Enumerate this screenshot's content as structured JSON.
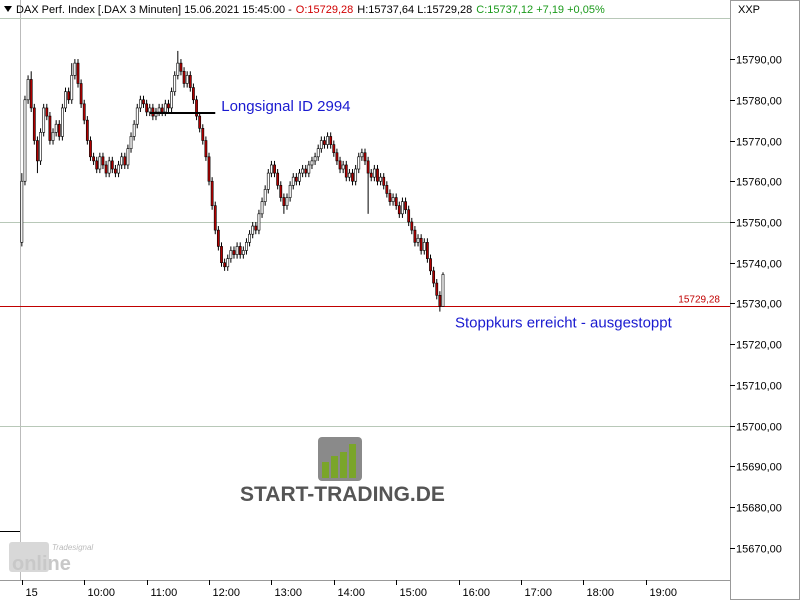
{
  "chart_data": {
    "type": "candlestick",
    "header": [
      {
        "text": "DAX Perf. Index [.DAX  3 Minuten] 15.06.2021 15:45:00 -",
        "color": "#000000"
      },
      {
        "text": "O:15729,28",
        "color": "#d00000"
      },
      {
        "text": "H:15737,64 L:15729,28",
        "color": "#000000"
      },
      {
        "text": "C:15737,12 +7,19 +0,05%",
        "color": "#1a9a1a"
      }
    ],
    "axis_name": "XXP",
    "up_color": "#ffffff",
    "down_color": "#b00000",
    "xlim": [
      519,
      1221
    ],
    "ylim": [
      15662.1,
      15804.5
    ],
    "xticks": [
      {
        "value": 540,
        "label": "15"
      },
      {
        "value": 600,
        "label": "10:00"
      },
      {
        "value": 660,
        "label": "11:00"
      },
      {
        "value": 720,
        "label": "12:00"
      },
      {
        "value": 780,
        "label": "13:00"
      },
      {
        "value": 840,
        "label": "14:00"
      },
      {
        "value": 900,
        "label": "15:00"
      },
      {
        "value": 960,
        "label": "16:00"
      },
      {
        "value": 1020,
        "label": "17:00"
      },
      {
        "value": 1080,
        "label": "18:00"
      },
      {
        "value": 1140,
        "label": "19:00"
      }
    ],
    "yticks": [
      {
        "value": 15670,
        "label": "15670,00"
      },
      {
        "value": 15680,
        "label": "15680,00"
      },
      {
        "value": 15690,
        "label": "15690,00"
      },
      {
        "value": 15700,
        "label": "15700,00"
      },
      {
        "value": 15710,
        "label": "15710,00"
      },
      {
        "value": 15720,
        "label": "15720,00"
      },
      {
        "value": 15730,
        "label": "15730,00"
      },
      {
        "value": 15740,
        "label": "15740,00"
      },
      {
        "value": 15750,
        "label": "15750,00"
      },
      {
        "value": 15760,
        "label": "15760,00"
      },
      {
        "value": 15770,
        "label": "15770,00"
      },
      {
        "value": 15780,
        "label": "15780,00"
      },
      {
        "value": 15790,
        "label": "15790,00"
      }
    ],
    "grid_levels": [
      15700,
      15750,
      15800
    ],
    "price_line": {
      "value": 15729.28,
      "label": "15729,28",
      "color": "#c00000"
    },
    "signal": {
      "text": "Longsignal ID 2994",
      "value": 15776.75,
      "x": [
        663,
        726
      ]
    },
    "stop_text": "Stoppkurs erreicht - ausgestoppt",
    "watermark": "START-TRADING.DE",
    "brand": [
      "Tradesignal",
      "online"
    ],
    "x": [
      540,
      543,
      546,
      549,
      552,
      555,
      558,
      561,
      564,
      567,
      570,
      573,
      576,
      579,
      582,
      585,
      588,
      591,
      594,
      597,
      600,
      603,
      606,
      609,
      612,
      615,
      618,
      621,
      624,
      627,
      630,
      633,
      636,
      639,
      642,
      645,
      648,
      651,
      654,
      657,
      660,
      663,
      666,
      669,
      672,
      675,
      678,
      681,
      684,
      687,
      690,
      693,
      696,
      699,
      702,
      705,
      708,
      711,
      714,
      717,
      720,
      723,
      726,
      729,
      732,
      735,
      738,
      741,
      744,
      747,
      750,
      753,
      756,
      759,
      762,
      765,
      768,
      771,
      774,
      777,
      780,
      783,
      786,
      789,
      792,
      795,
      798,
      801,
      804,
      807,
      810,
      813,
      816,
      819,
      822,
      825,
      828,
      831,
      834,
      837,
      840,
      843,
      846,
      849,
      852,
      855,
      858,
      861,
      864,
      867,
      870,
      873,
      876,
      879,
      882,
      885,
      888,
      891,
      894,
      897,
      900,
      903,
      906,
      909,
      912,
      915,
      918,
      921,
      924,
      927,
      930,
      933,
      936,
      939,
      942,
      945
    ],
    "ohlc": [
      [
        15745,
        15762,
        15744,
        15760
      ],
      [
        15760,
        15781,
        15759,
        15780
      ],
      [
        15780,
        15786,
        15779,
        15785
      ],
      [
        15785,
        15787,
        15777,
        15778
      ],
      [
        15778,
        15779,
        15769,
        15770
      ],
      [
        15770,
        15771,
        15762,
        15765
      ],
      [
        15765,
        15773,
        15764,
        15772
      ],
      [
        15772,
        15779,
        15771,
        15778
      ],
      [
        15778,
        15779,
        15775,
        15776
      ],
      [
        15776,
        15777,
        15769,
        15770
      ],
      [
        15770,
        15773,
        15769,
        15772
      ],
      [
        15772,
        15775,
        15771,
        15774
      ],
      [
        15774,
        15775,
        15770,
        15771
      ],
      [
        15771,
        15779,
        15770,
        15778
      ],
      [
        15778,
        15783,
        15777,
        15782
      ],
      [
        15782,
        15783,
        15779,
        15780
      ],
      [
        15780,
        15789,
        15779,
        15786
      ],
      [
        15786,
        15790,
        15785,
        15789
      ],
      [
        15789,
        15790,
        15783,
        15784
      ],
      [
        15784,
        15785,
        15778,
        15779
      ],
      [
        15779,
        15780,
        15774,
        15775
      ],
      [
        15775,
        15776,
        15769,
        15770
      ],
      [
        15770,
        15771,
        15765,
        15766
      ],
      [
        15766,
        15767,
        15764,
        15765
      ],
      [
        15765,
        15766,
        15762,
        15763
      ],
      [
        15763,
        15767,
        15762,
        15766
      ],
      [
        15766,
        15767,
        15763,
        15764
      ],
      [
        15764,
        15765,
        15761,
        15762
      ],
      [
        15762,
        15766,
        15761,
        15765
      ],
      [
        15765,
        15766,
        15762,
        15763
      ],
      [
        15763,
        15764,
        15761,
        15762
      ],
      [
        15762,
        15765,
        15761,
        15764
      ],
      [
        15764,
        15767,
        15763,
        15766
      ],
      [
        15766,
        15767,
        15763,
        15764
      ],
      [
        15764,
        15769,
        15763,
        15768
      ],
      [
        15768,
        15772,
        15767,
        15771
      ],
      [
        15771,
        15775,
        15770,
        15774
      ],
      [
        15774,
        15779,
        15773,
        15778
      ],
      [
        15778,
        15781,
        15777,
        15780
      ],
      [
        15780,
        15781,
        15778,
        15779
      ],
      [
        15779,
        15780,
        15776,
        15777
      ],
      [
        15777,
        15779,
        15776,
        15778
      ],
      [
        15778,
        15779,
        15775,
        15776
      ],
      [
        15776,
        15778,
        15775,
        15777
      ],
      [
        15777,
        15779,
        15776,
        15778
      ],
      [
        15778,
        15779,
        15776,
        15777
      ],
      [
        15777,
        15780,
        15776,
        15779
      ],
      [
        15779,
        15780,
        15777,
        15778
      ],
      [
        15778,
        15783,
        15777,
        15782
      ],
      [
        15782,
        15787,
        15781,
        15786
      ],
      [
        15786,
        15792,
        15785,
        15789
      ],
      [
        15789,
        15790,
        15786,
        15787
      ],
      [
        15787,
        15788,
        15783,
        15784
      ],
      [
        15784,
        15787,
        15783,
        15786
      ],
      [
        15786,
        15787,
        15782,
        15783
      ],
      [
        15783,
        15784,
        15779,
        15780
      ],
      [
        15780,
        15781,
        15775,
        15776
      ],
      [
        15776,
        15777,
        15772,
        15773
      ],
      [
        15773,
        15774,
        15769,
        15770
      ],
      [
        15770,
        15771,
        15765,
        15766
      ],
      [
        15766,
        15767,
        15759,
        15760
      ],
      [
        15760,
        15761,
        15753,
        15754
      ],
      [
        15754,
        15755,
        15747,
        15748
      ],
      [
        15748,
        15749,
        15743,
        15744
      ],
      [
        15744,
        15745,
        15739,
        15740
      ],
      [
        15740,
        15741,
        15738,
        15739
      ],
      [
        15739,
        15742,
        15738,
        15741
      ],
      [
        15741,
        15744,
        15740,
        15743
      ],
      [
        15743,
        15744,
        15741,
        15742
      ],
      [
        15742,
        15745,
        15741,
        15744
      ],
      [
        15744,
        15745,
        15741,
        15742
      ],
      [
        15742,
        15744,
        15741,
        15743
      ],
      [
        15743,
        15746,
        15742,
        15745
      ],
      [
        15745,
        15748,
        15744,
        15747
      ],
      [
        15747,
        15750,
        15746,
        15749
      ],
      [
        15749,
        15750,
        15747,
        15748
      ],
      [
        15748,
        15753,
        15747,
        15752
      ],
      [
        15752,
        15756,
        15751,
        15755
      ],
      [
        15755,
        15759,
        15754,
        15758
      ],
      [
        15758,
        15763,
        15757,
        15762
      ],
      [
        15762,
        15765,
        15761,
        15764
      ],
      [
        15764,
        15765,
        15761,
        15762
      ],
      [
        15762,
        15763,
        15758,
        15759
      ],
      [
        15759,
        15760,
        15755,
        15756
      ],
      [
        15756,
        15757,
        15752,
        15754
      ],
      [
        15754,
        15757,
        15753,
        15756
      ],
      [
        15756,
        15760,
        15755,
        15759
      ],
      [
        15759,
        15762,
        15758,
        15761
      ],
      [
        15761,
        15762,
        15759,
        15760
      ],
      [
        15760,
        15763,
        15759,
        15762
      ],
      [
        15762,
        15764,
        15761,
        15763
      ],
      [
        15763,
        15764,
        15761,
        15762
      ],
      [
        15762,
        15765,
        15761,
        15764
      ],
      [
        15764,
        15766,
        15763,
        15765
      ],
      [
        15765,
        15767,
        15764,
        15766
      ],
      [
        15766,
        15769,
        15765,
        15768
      ],
      [
        15768,
        15771,
        15767,
        15770
      ],
      [
        15770,
        15771,
        15768,
        15769
      ],
      [
        15769,
        15772,
        15768,
        15771
      ],
      [
        15771,
        15772,
        15768,
        15769
      ],
      [
        15769,
        15770,
        15766,
        15767
      ],
      [
        15767,
        15768,
        15764,
        15765
      ],
      [
        15765,
        15766,
        15762,
        15763
      ],
      [
        15763,
        15765,
        15762,
        15764
      ],
      [
        15764,
        15765,
        15760,
        15761
      ],
      [
        15761,
        15763,
        15760,
        15762
      ],
      [
        15762,
        15763,
        15759,
        15760
      ],
      [
        15760,
        15764,
        15759,
        15763
      ],
      [
        15763,
        15767,
        15762,
        15766
      ],
      [
        15766,
        15768,
        15765,
        15767
      ],
      [
        15767,
        15768,
        15764,
        15765
      ],
      [
        15765,
        15766,
        15752,
        15762
      ],
      [
        15762,
        15763,
        15760,
        15761
      ],
      [
        15761,
        15764,
        15760,
        15763
      ],
      [
        15763,
        15764,
        15759,
        15760
      ],
      [
        15760,
        15762,
        15759,
        15761
      ],
      [
        15761,
        15762,
        15758,
        15759
      ],
      [
        15759,
        15760,
        15756,
        15757
      ],
      [
        15757,
        15758,
        15754,
        15755
      ],
      [
        15755,
        15757,
        15754,
        15756
      ],
      [
        15756,
        15757,
        15753,
        15754
      ],
      [
        15754,
        15755,
        15751,
        15752
      ],
      [
        15752,
        15756,
        15751,
        15755
      ],
      [
        15755,
        15756,
        15752,
        15753
      ],
      [
        15753,
        15754,
        15749,
        15750
      ],
      [
        15750,
        15751,
        15747,
        15748
      ],
      [
        15748,
        15749,
        15744,
        15745
      ],
      [
        15745,
        15747,
        15744,
        15746
      ],
      [
        15746,
        15747,
        15742,
        15743
      ],
      [
        15743,
        15746,
        15742,
        15745
      ],
      [
        15745,
        15746,
        15740,
        15741
      ],
      [
        15741,
        15742,
        15737,
        15738
      ],
      [
        15738,
        15739,
        15734,
        15735
      ],
      [
        15735,
        15736,
        15731,
        15732
      ],
      [
        15732,
        15733,
        15728,
        15729.28
      ],
      [
        15729.28,
        15737.64,
        15729.28,
        15737.12
      ]
    ]
  }
}
